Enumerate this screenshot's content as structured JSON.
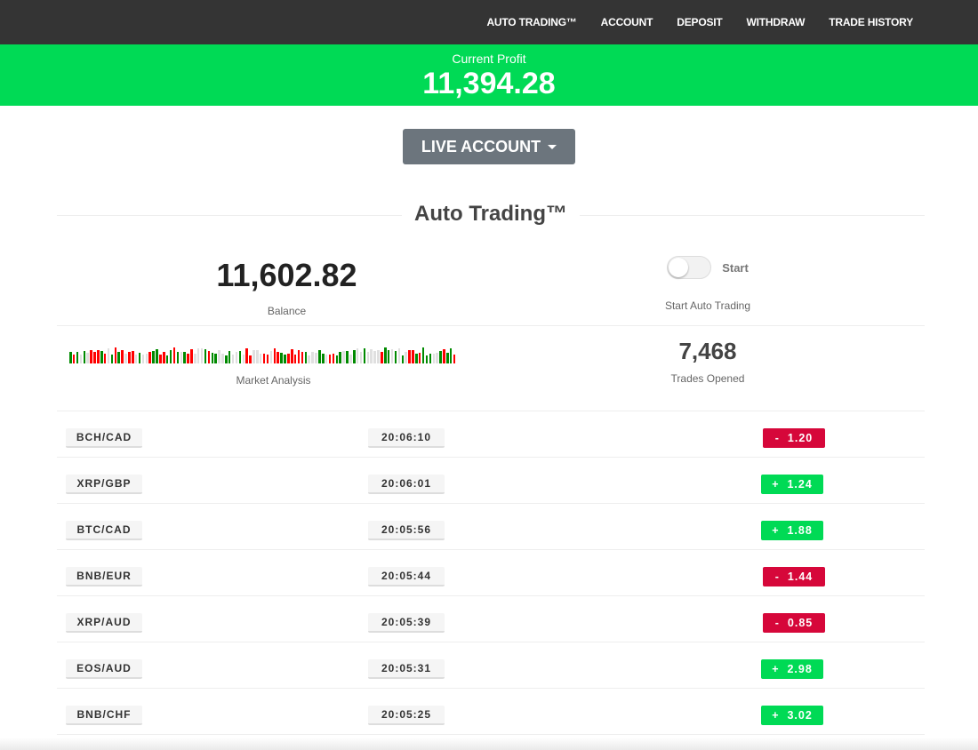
{
  "nav": [
    "AUTO TRADING™",
    "ACCOUNT",
    "DEPOSIT",
    "WITHDRAW",
    "TRADE HISTORY"
  ],
  "profit": {
    "label": "Current Profit",
    "value": "11,394.28"
  },
  "account_button": "LIVE ACCOUNT",
  "section_title": "Auto Trading™",
  "balance": {
    "value": "11,602.82",
    "label": "Balance"
  },
  "toggle": {
    "label": "Start",
    "caption": "Start Auto Trading",
    "on": false
  },
  "market": {
    "label": "Market Analysis"
  },
  "trades": {
    "value": "7,468",
    "label": "Trades Opened"
  },
  "colors": {
    "green": "#00da55",
    "red": "#d6073a",
    "nav": "#343434",
    "bar_green": "#008a00",
    "bar_red": "#ff0000",
    "bar_gray": "#e0e0e0"
  },
  "rows": [
    {
      "pair": "BCH/CAD",
      "time": "20:06:10",
      "change": "-  1.20",
      "dir": "down"
    },
    {
      "pair": "XRP/GBP",
      "time": "20:06:01",
      "change": "+  1.24",
      "dir": "up"
    },
    {
      "pair": "BTC/CAD",
      "time": "20:05:56",
      "change": "+  1.88",
      "dir": "up"
    },
    {
      "pair": "BNB/EUR",
      "time": "20:05:44",
      "change": "-  1.44",
      "dir": "down"
    },
    {
      "pair": "XRP/AUD",
      "time": "20:05:39",
      "change": "-  0.85",
      "dir": "down"
    },
    {
      "pair": "EOS/AUD",
      "time": "20:05:31",
      "change": "+  2.98",
      "dir": "up"
    },
    {
      "pair": "BNB/CHF",
      "time": "20:05:25",
      "change": "+  3.02",
      "dir": "up"
    }
  ]
}
